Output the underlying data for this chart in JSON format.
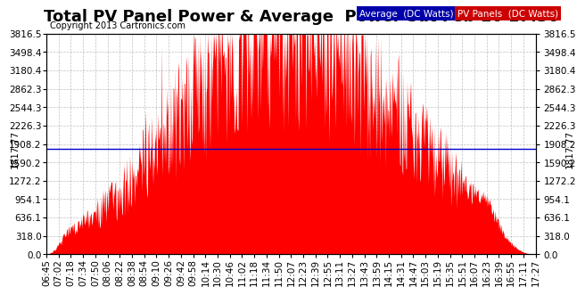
{
  "title": "Total PV Panel Power & Average  Power Sat Feb 16 17:30",
  "copyright": "Copyright 2013 Cartronics.com",
  "average_value": 1817.77,
  "ymax": 3816.5,
  "yticks": [
    0.0,
    318.0,
    636.1,
    954.1,
    1272.2,
    1590.2,
    1908.2,
    2226.3,
    2544.3,
    2862.3,
    3180.4,
    3498.4,
    3816.5
  ],
  "ytick_labels": [
    "0.0",
    "318.0",
    "636.1",
    "954.1",
    "1272.2",
    "1590.2",
    "1908.2",
    "2226.3",
    "2544.3",
    "2862.3",
    "3180.4",
    "3498.4",
    "3816.5"
  ],
  "left_ylabel": "1817.77",
  "right_ylabel": "1817.77",
  "bg_color": "#ffffff",
  "plot_bg_color": "#ffffff",
  "grid_color": "#b0b0b0",
  "red_color": "#ff0000",
  "avg_line_color": "#0000cc",
  "legend_avg_bg": "#0000aa",
  "legend_pv_bg": "#cc0000",
  "title_fontsize": 13,
  "tick_fontsize": 7.5,
  "copyright_fontsize": 7,
  "xtick_labels": [
    "06:45",
    "07:02",
    "07:18",
    "07:34",
    "07:50",
    "08:06",
    "08:22",
    "08:38",
    "08:54",
    "09:10",
    "09:26",
    "09:42",
    "09:58",
    "10:14",
    "10:30",
    "10:46",
    "11:02",
    "11:18",
    "11:34",
    "11:50",
    "12:07",
    "12:23",
    "12:39",
    "12:55",
    "13:11",
    "13:27",
    "13:43",
    "13:59",
    "14:15",
    "14:31",
    "14:47",
    "15:03",
    "15:19",
    "15:35",
    "15:51",
    "16:07",
    "16:23",
    "16:39",
    "16:55",
    "17:11",
    "17:27"
  ]
}
